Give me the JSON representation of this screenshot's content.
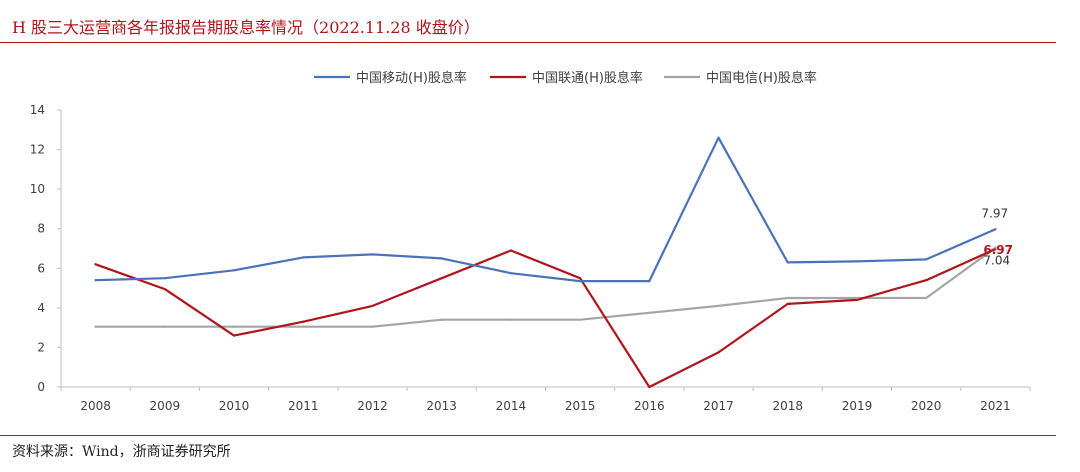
{
  "header": {
    "title": "H 股三大运营商各年报报告期股息率情况（2022.11.28 收盘价）"
  },
  "footer": {
    "source": "资料来源：Wind，浙商证券研究所"
  },
  "chart_data": {
    "type": "line",
    "title": "H 股三大运营商各年报报告期股息率情况（2022.11.28 收盘价）",
    "xlabel": "",
    "ylabel": "",
    "ylim": [
      0,
      14
    ],
    "yticks": [
      "0",
      "2",
      "4",
      "6",
      "8",
      "10",
      "12",
      "14"
    ],
    "categories": [
      "2008",
      "2009",
      "2010",
      "2011",
      "2012",
      "2013",
      "2014",
      "2015",
      "2016",
      "2017",
      "2018",
      "2019",
      "2020",
      "2021"
    ],
    "legend_position": "top",
    "grid": false,
    "series": [
      {
        "name": "中国移动(H)股息率",
        "color": "#4a72b8",
        "values": [
          5.4,
          5.5,
          5.9,
          6.55,
          6.7,
          6.5,
          5.75,
          5.35,
          5.35,
          12.6,
          6.3,
          6.35,
          6.45,
          7.97
        ]
      },
      {
        "name": "中国联通(H)股息率",
        "color": "#b0151c",
        "values": [
          6.2,
          4.95,
          2.6,
          3.3,
          4.1,
          5.5,
          6.9,
          5.5,
          0.0,
          1.75,
          4.2,
          4.4,
          5.4,
          6.97
        ]
      },
      {
        "name": "中国电信(H)股息率",
        "color": "#a5a5a5",
        "values": [
          3.05,
          3.05,
          3.05,
          3.05,
          3.05,
          3.4,
          3.4,
          3.4,
          3.75,
          4.1,
          4.5,
          4.5,
          4.5,
          7.04
        ]
      }
    ],
    "annotations": [
      {
        "text": "7.97",
        "series": 0,
        "category": "2021",
        "color": "#333333"
      },
      {
        "text": "7.04",
        "series": 2,
        "category": "2021",
        "color": "#333333"
      },
      {
        "text": "6.97",
        "series": 1,
        "category": "2021",
        "color": "#b0151c"
      }
    ]
  }
}
